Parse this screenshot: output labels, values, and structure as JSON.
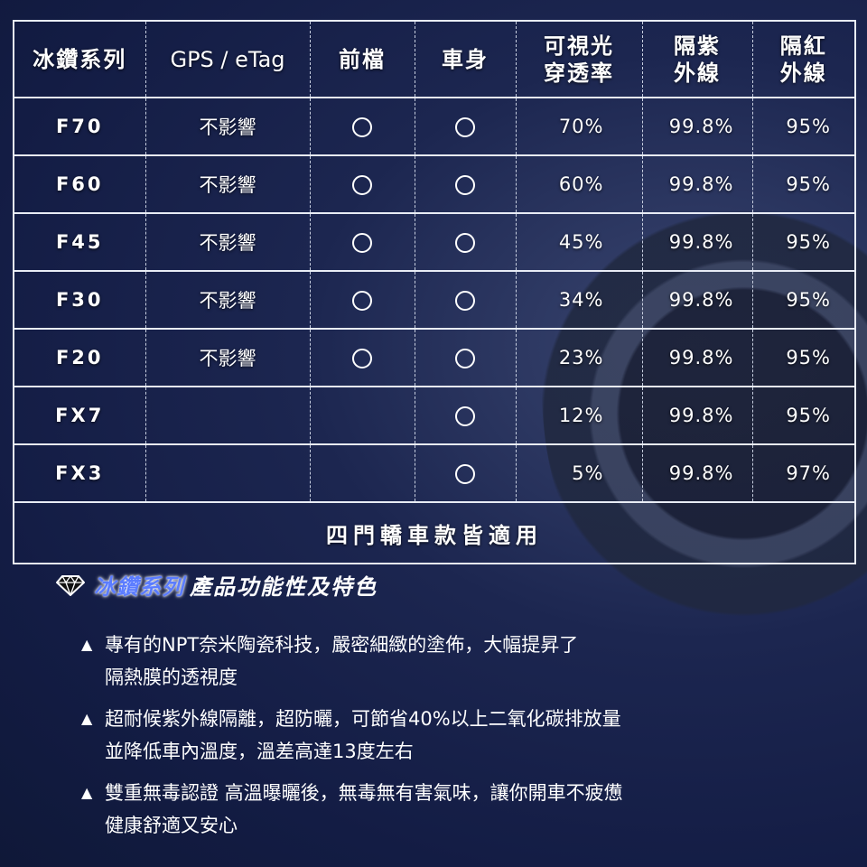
{
  "table": {
    "headers": [
      "冰鑽系列",
      "GPS / eTag",
      "前檔",
      "車身",
      "可視光\n穿透率",
      "隔紫\n外線",
      "隔紅\n外線"
    ],
    "rows": [
      {
        "model": "F70",
        "gps": "不影響",
        "front": true,
        "body": true,
        "vlt": "70%",
        "uv": "99.8%",
        "ir": "95%"
      },
      {
        "model": "F60",
        "gps": "不影響",
        "front": true,
        "body": true,
        "vlt": "60%",
        "uv": "99.8%",
        "ir": "95%"
      },
      {
        "model": "F45",
        "gps": "不影響",
        "front": true,
        "body": true,
        "vlt": "45%",
        "uv": "99.8%",
        "ir": "95%"
      },
      {
        "model": "F30",
        "gps": "不影響",
        "front": true,
        "body": true,
        "vlt": "34%",
        "uv": "99.8%",
        "ir": "95%"
      },
      {
        "model": "F20",
        "gps": "不影響",
        "front": true,
        "body": true,
        "vlt": "23%",
        "uv": "99.8%",
        "ir": "95%"
      },
      {
        "model": "FX7",
        "gps": "",
        "front": false,
        "body": true,
        "vlt": "12%",
        "uv": "99.8%",
        "ir": "95%"
      },
      {
        "model": "FX3",
        "gps": "",
        "front": false,
        "body": true,
        "vlt": "5%",
        "uv": "99.8%",
        "ir": "97%"
      }
    ],
    "footer": "四門轎車款皆適用"
  },
  "features": {
    "icon": "diamond-icon",
    "title_highlight": "冰鑽系列",
    "title_rest": "產品功能性及特色",
    "items": [
      [
        "專有的NPT奈米陶瓷科技，嚴密細緻的塗佈，大幅提昇了",
        "隔熱膜的透視度"
      ],
      [
        "超耐候紫外線隔離，超防曬，可節省40%以上二氧化碳排放量",
        "並降低車內溫度，溫差高達13度左右"
      ],
      [
        "雙重無毒認證 高溫曝曬後，無毒無有害氣味，讓你開車不疲憊",
        "健康舒適又安心"
      ]
    ],
    "bullet": "▲"
  },
  "colors": {
    "background": "#131c44",
    "highlight": "#5b7cff"
  }
}
